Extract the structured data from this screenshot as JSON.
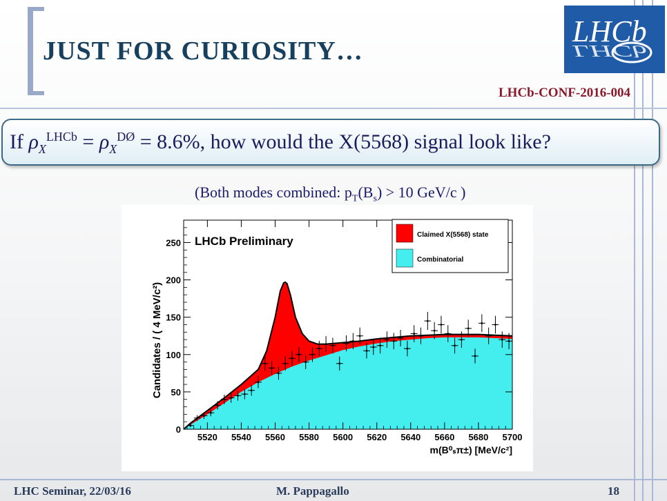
{
  "slide": {
    "title": "JUST FOR CURIOSITY…",
    "conf_ref": "LHCb-CONF-2016-004",
    "question": {
      "prefix": "If ",
      "lhs_sup": "LHCb",
      "lhs_sub": "X",
      "rhs_sup": "DØ",
      "rhs_sub": "X",
      "value": "= 8.6%",
      "suffix": ", how would the X(5568) signal look like?"
    },
    "caption": {
      "prefix": "(Both modes combined: p",
      "sub1": "T",
      "mid": "(B",
      "sub2": "s",
      "suffix": ") > 10 GeV/c )"
    },
    "footer": {
      "left": "LHC Seminar, 22/03/16",
      "center": "M. Pappagallo",
      "page": "18"
    },
    "logo": {
      "text": "LHCb",
      "color": "#1f5ba6"
    }
  },
  "chart_data": {
    "type": "scatter",
    "title": "LHCb Preliminary",
    "xlabel": "m(B⁰ₛπ±) [MeV/c²]",
    "ylabel": "Candidates / ( 4 MeV/c²)",
    "xlim": [
      5506,
      5700
    ],
    "ylim": [
      0,
      280
    ],
    "xticks": [
      5520,
      5540,
      5560,
      5580,
      5600,
      5620,
      5640,
      5660,
      5680,
      5700
    ],
    "yticks": [
      0,
      50,
      100,
      150,
      200,
      250
    ],
    "legend": {
      "position": "top-right",
      "entries": [
        {
          "label": "Claimed X(5568) state",
          "color": "#ff0000"
        },
        {
          "label": "Combinatorial",
          "color": "#44eeee"
        }
      ]
    },
    "data_points": {
      "x": [
        5510,
        5514,
        5518,
        5522,
        5526,
        5530,
        5534,
        5538,
        5542,
        5546,
        5550,
        5554,
        5558,
        5562,
        5566,
        5570,
        5574,
        5578,
        5582,
        5586,
        5590,
        5594,
        5598,
        5602,
        5606,
        5610,
        5614,
        5618,
        5622,
        5626,
        5630,
        5634,
        5638,
        5642,
        5646,
        5650,
        5654,
        5658,
        5662,
        5666,
        5670,
        5674,
        5678,
        5682,
        5686,
        5690,
        5694,
        5698
      ],
      "y": [
        5,
        15,
        18,
        22,
        32,
        40,
        42,
        45,
        47,
        52,
        63,
        88,
        82,
        75,
        88,
        95,
        100,
        90,
        100,
        108,
        114,
        112,
        88,
        115,
        118,
        125,
        105,
        110,
        112,
        120,
        118,
        122,
        108,
        128,
        125,
        145,
        132,
        140,
        128,
        112,
        120,
        135,
        98,
        142,
        125,
        140,
        120,
        118
      ]
    },
    "combinatorial": {
      "x": [
        5506,
        5510,
        5520,
        5530,
        5540,
        5550,
        5560,
        5570,
        5580,
        5590,
        5600,
        5610,
        5620,
        5630,
        5640,
        5650,
        5660,
        5670,
        5680,
        5690,
        5700
      ],
      "y": [
        0,
        6,
        20,
        35,
        50,
        63,
        74,
        84,
        92,
        99,
        106,
        111,
        115,
        118,
        120,
        122,
        123,
        123,
        123,
        122,
        121
      ]
    },
    "total": {
      "x": [
        5506,
        5510,
        5520,
        5530,
        5540,
        5550,
        5555,
        5560,
        5563,
        5565,
        5566,
        5567,
        5569,
        5572,
        5576,
        5580,
        5585,
        5590,
        5600,
        5610,
        5620,
        5630,
        5640,
        5650,
        5660,
        5670,
        5680,
        5690,
        5700
      ],
      "y": [
        0,
        8,
        25,
        42,
        60,
        80,
        105,
        150,
        185,
        196,
        197,
        195,
        180,
        150,
        128,
        118,
        114,
        114,
        116,
        118,
        121,
        123,
        125,
        126,
        127,
        127,
        127,
        126,
        125
      ]
    },
    "grid": false
  }
}
